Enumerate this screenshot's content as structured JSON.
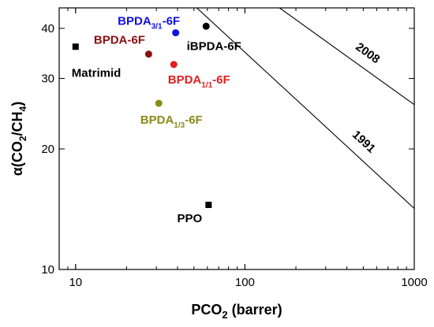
{
  "chart_data": {
    "type": "scatter",
    "xlabel": {
      "base": "PCO",
      "sub": "2",
      "rest": " (barrer)"
    },
    "ylabel": {
      "parts": [
        {
          "t": "α(CO"
        },
        {
          "t": "2",
          "sub": true
        },
        {
          "t": "/CH"
        },
        {
          "t": "4",
          "sub": true
        },
        {
          "t": ")"
        }
      ]
    },
    "x_scale": "log",
    "y_scale": "log",
    "xlim": [
      8,
      1000
    ],
    "ylim": [
      10,
      45
    ],
    "x_ticks": [
      {
        "value": 10,
        "label": "10"
      },
      {
        "value": 100,
        "label": "100"
      },
      {
        "value": 1000,
        "label": "1000"
      }
    ],
    "y_ticks": [
      {
        "value": 10,
        "label": "10"
      },
      {
        "value": 20,
        "label": "20"
      },
      {
        "value": 30,
        "label": "30"
      },
      {
        "value": 40,
        "label": "40"
      }
    ],
    "points": [
      {
        "label": "Matrimid",
        "label_parts": [
          {
            "t": "Matrimid"
          }
        ],
        "x": 10,
        "y": 36,
        "shape": "square",
        "color": "#000000"
      },
      {
        "label": "PPO",
        "label_parts": [
          {
            "t": "PPO"
          }
        ],
        "x": 61,
        "y": 14.5,
        "shape": "square",
        "color": "#000000"
      },
      {
        "label": "BPDA3/1-6F",
        "label_parts": [
          {
            "t": "BPDA"
          },
          {
            "t": "3/1",
            "sub": true
          },
          {
            "t": "-6F"
          }
        ],
        "x": 39,
        "y": 39,
        "shape": "circle",
        "color": "#1010e0"
      },
      {
        "label": "iBPDA-6F",
        "label_parts": [
          {
            "t": "iBPDA-6F"
          }
        ],
        "x": 59,
        "y": 40.5,
        "shape": "circle",
        "color": "#000000"
      },
      {
        "label": "BPDA-6F",
        "label_parts": [
          {
            "t": "BPDA-6F"
          }
        ],
        "x": 27,
        "y": 34.5,
        "shape": "circle",
        "color": "#8b1010"
      },
      {
        "label": "BPDA1/1-6F",
        "label_parts": [
          {
            "t": "BPDA"
          },
          {
            "t": "1/1",
            "sub": true
          },
          {
            "t": "-6F"
          }
        ],
        "x": 38,
        "y": 32.5,
        "shape": "circle",
        "color": "#e02020"
      },
      {
        "label": "BPDA1/3-6F",
        "label_parts": [
          {
            "t": "BPDA"
          },
          {
            "t": "1/3",
            "sub": true
          },
          {
            "t": "-6F"
          }
        ],
        "x": 31,
        "y": 26,
        "shape": "circle",
        "color": "#8a8a1a"
      }
    ],
    "upper_bounds": [
      {
        "label": "1991",
        "start": [
          52,
          45
        ],
        "end": [
          1000,
          14.2
        ]
      },
      {
        "label": "2008",
        "start": [
          160,
          45
        ],
        "end": [
          1000,
          25.8
        ]
      }
    ]
  }
}
